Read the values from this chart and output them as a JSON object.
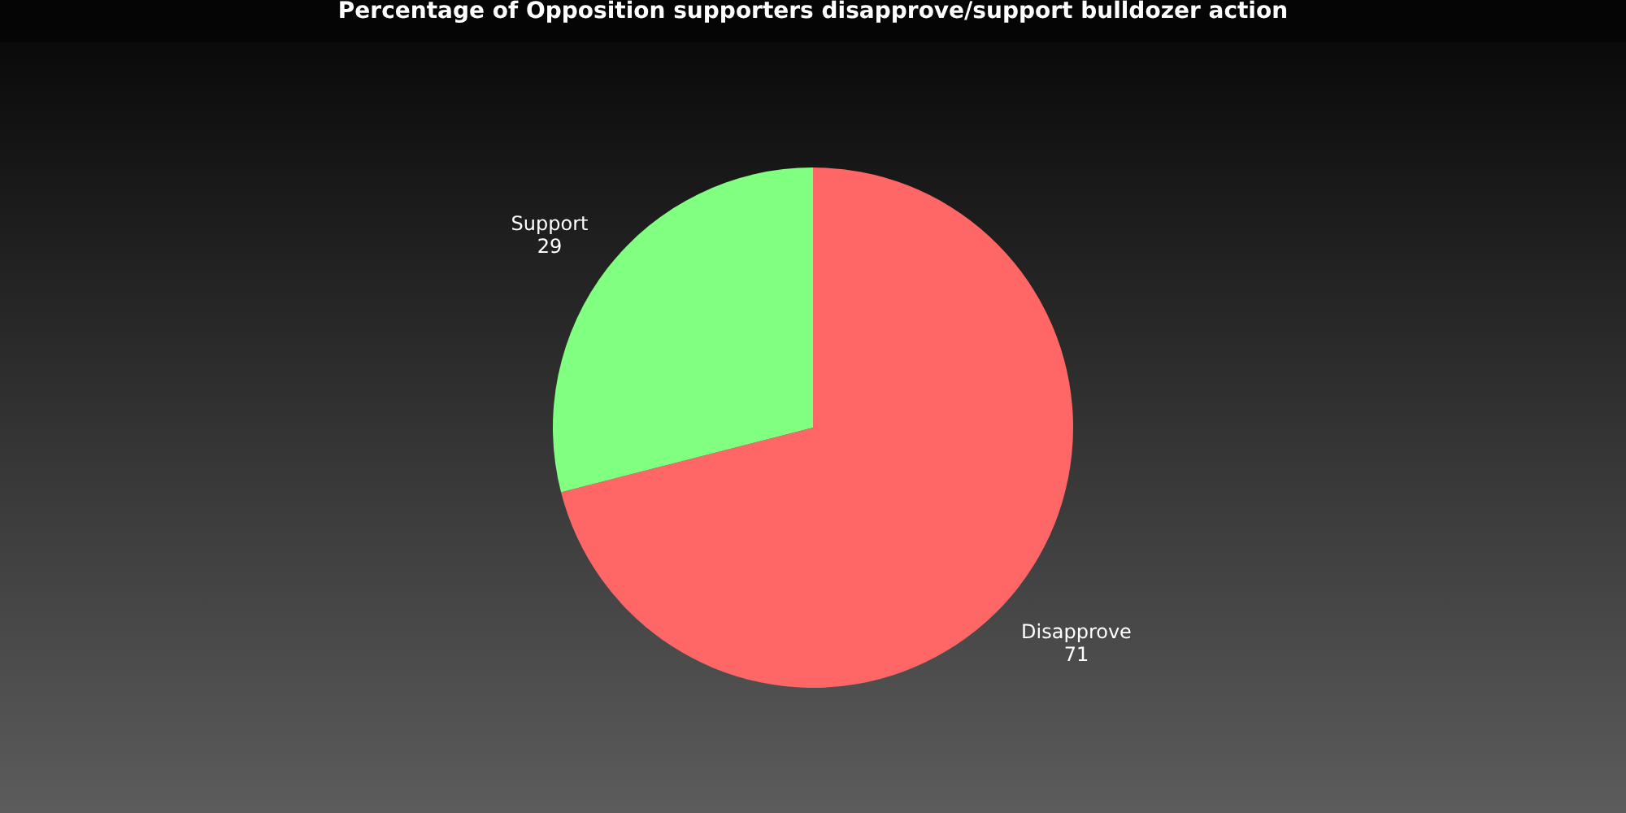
{
  "chart_data": {
    "type": "pie",
    "title": "Percentage of Opposition supporters disapprove/support bulldozer action",
    "categories": [
      "Disapprove",
      "Support"
    ],
    "values": [
      71,
      29
    ],
    "colors": [
      "#ff6666",
      "#80ff80"
    ],
    "data_labels": true,
    "legend": false
  }
}
